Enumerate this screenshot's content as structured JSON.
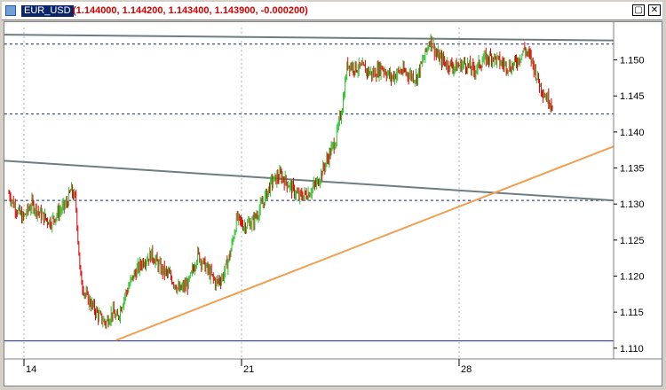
{
  "window": {
    "symbol": "EUR_USD",
    "quote": "(1.144000, 1.144200, 1.143400, 1.143900, -0.000200)",
    "minimize_icon": "minimize-icon",
    "close_icon": "close-icon"
  },
  "chart_data": {
    "type": "candlestick",
    "title": "",
    "xlabel": "",
    "ylabel": "",
    "x_tick_labels": [
      "14",
      "21",
      "28"
    ],
    "y_tick_labels": [
      "1.150",
      "1.145",
      "1.140",
      "1.135",
      "1.130",
      "1.125",
      "1.120",
      "1.115",
      "1.110"
    ],
    "ylim": [
      1.1085,
      1.1545
    ],
    "grid": "vertical dotted at week starts",
    "colors": {
      "up": "#2ec02e",
      "down": "#e00000",
      "channel": "#6e7e7e",
      "support": "#f0a050",
      "levels": "#1a237e"
    },
    "horizontal_levels": [
      1.1522,
      1.1425,
      1.1305,
      1.111
    ],
    "channel_lines": [
      {
        "from": [
          0,
          1.1535
        ],
        "to": [
          100,
          1.1527
        ]
      },
      {
        "from": [
          0,
          1.136
        ],
        "to": [
          100,
          1.1305
        ]
      }
    ],
    "support_line": {
      "from": [
        23.5,
        1.1111
      ],
      "to": [
        100,
        1.138
      ]
    },
    "price_path": [
      [
        0,
        1.1315
      ],
      [
        1,
        1.13
      ],
      [
        3,
        1.128
      ],
      [
        5,
        1.13
      ],
      [
        7,
        1.1285
      ],
      [
        9,
        1.1275
      ],
      [
        11,
        1.129
      ],
      [
        12.5,
        1.13
      ],
      [
        13.5,
        1.132
      ],
      [
        14.5,
        1.1305
      ],
      [
        15.5,
        1.12
      ],
      [
        16.5,
        1.1175
      ],
      [
        18,
        1.116
      ],
      [
        19.5,
        1.1145
      ],
      [
        21,
        1.1135
      ],
      [
        22.5,
        1.115
      ],
      [
        23.5,
        1.114
      ],
      [
        25,
        1.117
      ],
      [
        27,
        1.12
      ],
      [
        29,
        1.122
      ],
      [
        31,
        1.123
      ],
      [
        33,
        1.121
      ],
      [
        35,
        1.12
      ],
      [
        37,
        1.118
      ],
      [
        39,
        1.119
      ],
      [
        41,
        1.123
      ],
      [
        43,
        1.121
      ],
      [
        45,
        1.119
      ],
      [
        46.5,
        1.12
      ],
      [
        48,
        1.123
      ],
      [
        49.5,
        1.128
      ],
      [
        51,
        1.127
      ],
      [
        53,
        1.1275
      ],
      [
        55,
        1.13
      ],
      [
        57,
        1.133
      ],
      [
        59,
        1.134
      ],
      [
        61,
        1.1325
      ],
      [
        63,
        1.131
      ],
      [
        65,
        1.1315
      ],
      [
        67,
        1.133
      ],
      [
        69,
        1.136
      ],
      [
        71,
        1.139
      ],
      [
        72.5,
        1.144
      ],
      [
        73.5,
        1.1495
      ],
      [
        75,
        1.149
      ],
      [
        77,
        1.1488
      ],
      [
        79,
        1.148
      ],
      [
        81,
        1.149
      ],
      [
        83,
        1.1475
      ],
      [
        85,
        1.1485
      ],
      [
        87,
        1.148
      ],
      [
        88.5,
        1.1475
      ],
      [
        90,
        1.15
      ],
      [
        91.5,
        1.153
      ],
      [
        93,
        1.1505
      ],
      [
        95,
        1.1495
      ],
      [
        97,
        1.149
      ],
      [
        99,
        1.1495
      ],
      [
        101,
        1.1485
      ],
      [
        103,
        1.15
      ],
      [
        105,
        1.1505
      ],
      [
        107,
        1.1495
      ],
      [
        109,
        1.149
      ],
      [
        110.5,
        1.15
      ],
      [
        112,
        1.1515
      ],
      [
        113.5,
        1.15
      ],
      [
        115,
        1.147
      ],
      [
        116.5,
        1.145
      ],
      [
        118,
        1.1439
      ]
    ]
  }
}
